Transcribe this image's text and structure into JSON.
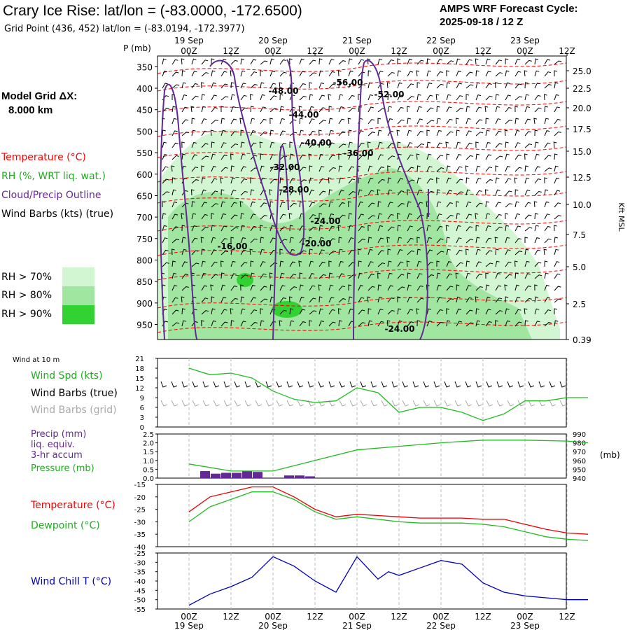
{
  "header": {
    "title": "Crary Ice Rise:  lat/lon = (-83.0000, -172.6500)",
    "subtitle": "Grid Point (436, 452) lat/lon = (-83.0194, -172.3977)",
    "cycle_line1": "AMPS WRF Forecast Cycle:",
    "cycle_line2": "2025-09-18 / 12  Z"
  },
  "left_legend": {
    "grid_dx_line1": "Model Grid ΔX:",
    "grid_dx_line2": "8.000 km",
    "temperature": "Temperature (°C)",
    "rh": "RH (%, WRT liq. wat.)",
    "cloud": "Cloud/Precip Outline",
    "wind": "Wind Barbs (kts) (true)",
    "rh70": "RH > 70%",
    "rh80": "RH > 80%",
    "rh90": "RH > 90%",
    "wind_at_10m": "Wind at 10 m",
    "wind_spd": "Wind Spd (kts)",
    "wind_barbs_true": "Wind Barbs (true)",
    "wind_barbs_grid": "Wind Barbs (grid)",
    "precip1": "Precip (mm)",
    "precip2": "liq. equiv.",
    "precip3": "3-hr accum",
    "pressure": "Pressure (mb)",
    "temp2": "Temperature (°C)",
    "dewpoint": "Dewpoint (°C)",
    "windchill": "Wind Chill T (°C)"
  },
  "colors": {
    "temp": "#ff0000",
    "rh70": "#d2f5d2",
    "rh80": "#a0e6a0",
    "rh90": "#32d232",
    "cloud": "#642896",
    "green_line": "#22bb22",
    "windchill": "#0000bb",
    "precip": "#642896",
    "grid_barbs": "#aaaaaa"
  },
  "chart_data": [
    {
      "type": "heatmap",
      "name": "cross-section",
      "time_ticks_top": [
        "00Z",
        "12Z",
        "00Z",
        "12Z",
        "00Z",
        "12Z",
        "00Z",
        "12Z",
        "00Z",
        "12Z"
      ],
      "date_labels": [
        "19 Sep",
        "20 Sep",
        "21 Sep",
        "22 Sep",
        "23 Sep"
      ],
      "pressure_label": "P (mb)",
      "pressure_levels": [
        350,
        400,
        450,
        500,
        550,
        600,
        650,
        700,
        750,
        800,
        850,
        900,
        950
      ],
      "height_label": "Kft MSL",
      "height_ticks": [
        "25.0",
        "22.5",
        "20.0",
        "17.5",
        "15.0",
        "12.5",
        "10.0",
        "7.5",
        "5.0",
        "2.5",
        "0.39"
      ],
      "isotherm_labels": [
        "-48.00",
        "-56.00",
        "-52.00",
        "-44.00",
        "-40.00",
        "-36.00",
        "-32.00",
        "-28.00",
        "-24.00",
        "-20.00",
        "-16.00",
        "-24.00"
      ]
    },
    {
      "type": "line",
      "name": "wind-speed",
      "y_ticks": [
        "21",
        "18",
        "15",
        "12",
        "9",
        "6",
        "3",
        "0"
      ],
      "ylim": [
        0,
        21
      ],
      "x_hours": [
        0,
        6,
        12,
        18,
        24,
        30,
        36,
        42,
        48,
        54,
        60,
        66,
        72,
        78,
        84,
        90,
        96,
        102,
        108,
        114
      ],
      "values": [
        18,
        16,
        16.5,
        15,
        11,
        8.5,
        7.5,
        8,
        12,
        10.5,
        4.5,
        6,
        6,
        4.5,
        2,
        4,
        8,
        8,
        9,
        9
      ]
    },
    {
      "type": "bar",
      "name": "precip-pressure",
      "left_ticks": [
        "2.5",
        "2.0",
        "1.5",
        "1.0",
        "0.5",
        "0.0"
      ],
      "right_ticks": [
        "990",
        "980",
        "970",
        "960",
        "950",
        "940"
      ],
      "right_label": "(mb)",
      "precip_hours": [
        6,
        9,
        12,
        15,
        18,
        21,
        30,
        33,
        36
      ],
      "precip_values": [
        0.4,
        0.25,
        0.3,
        0.3,
        0.4,
        0.35,
        0.15,
        0.15,
        0.1
      ],
      "pressure_hours": [
        0,
        12,
        24,
        36,
        48,
        60,
        72,
        84,
        96,
        108,
        114
      ],
      "pressure_values": [
        956,
        948,
        948,
        960,
        972,
        976,
        980,
        983,
        983,
        982,
        980
      ]
    },
    {
      "type": "line",
      "name": "temp-dewpoint",
      "y_ticks": [
        "-15",
        "-20",
        "-25",
        "-30",
        "-35",
        "-40"
      ],
      "ylim": [
        -40,
        -15
      ],
      "x_hours": [
        0,
        6,
        12,
        18,
        24,
        30,
        36,
        42,
        48,
        54,
        60,
        66,
        72,
        78,
        84,
        90,
        96,
        102,
        108,
        114
      ],
      "series": [
        {
          "name": "Temperature",
          "values": [
            -26,
            -20,
            -18,
            -16,
            -16,
            -20,
            -25,
            -28,
            -27,
            -27.5,
            -28,
            -28.5,
            -28.5,
            -28.5,
            -29,
            -29,
            -31,
            -33,
            -34.5,
            -35
          ]
        },
        {
          "name": "Dewpoint",
          "values": [
            -30,
            -24,
            -21,
            -18,
            -18,
            -21,
            -26,
            -29,
            -28,
            -29,
            -30,
            -30.5,
            -30.5,
            -30.5,
            -31,
            -32,
            -34,
            -36,
            -37,
            -37.5
          ]
        }
      ]
    },
    {
      "type": "line",
      "name": "wind-chill",
      "y_ticks": [
        "-25",
        "-30",
        "-35",
        "-40",
        "-45",
        "-50",
        "-55"
      ],
      "ylim": [
        -55,
        -25
      ],
      "x_hours": [
        0,
        6,
        12,
        18,
        24,
        30,
        36,
        42,
        48,
        51,
        54,
        57,
        60,
        66,
        72,
        78,
        84,
        90,
        96,
        102,
        108,
        114
      ],
      "values": [
        -53,
        -47,
        -43,
        -38,
        -27,
        -32,
        -40,
        -46,
        -27,
        -33,
        -39,
        -35,
        -37,
        -33,
        -29,
        -31,
        -41,
        -46,
        -48,
        -49,
        -50,
        -50
      ]
    }
  ]
}
